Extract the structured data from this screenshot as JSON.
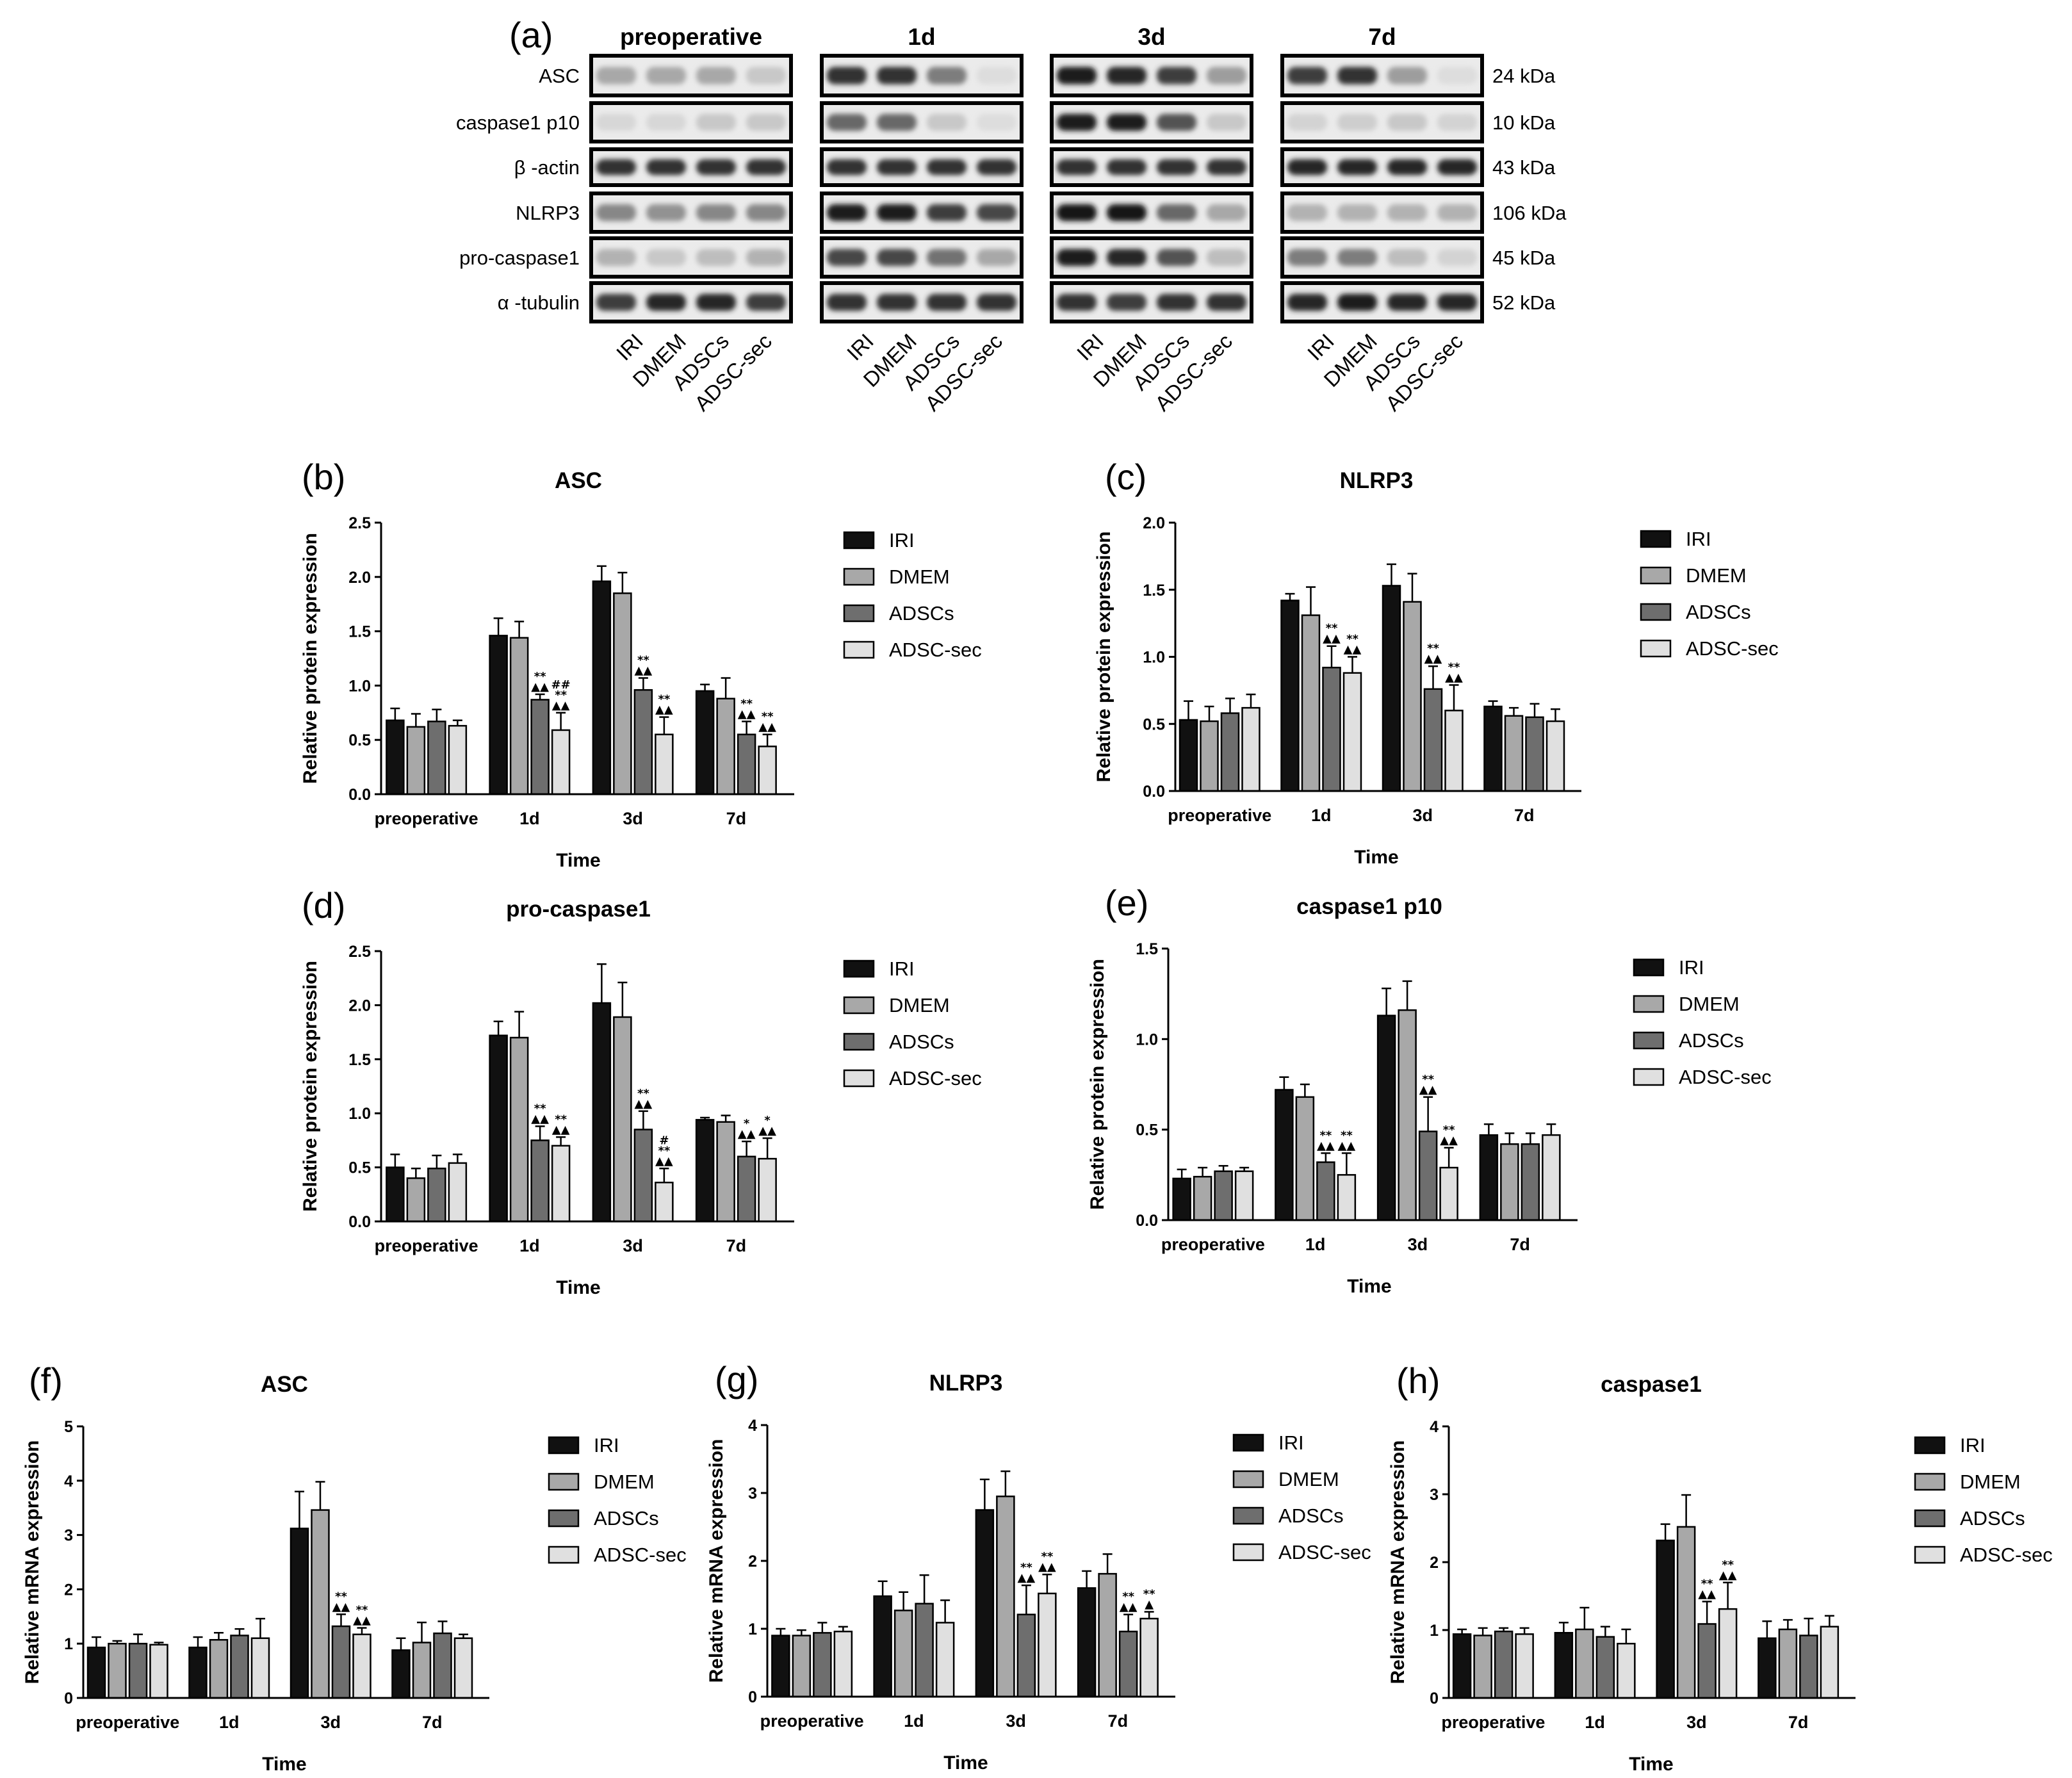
{
  "blot": {
    "panel": "(a)",
    "groups": [
      "preoperative",
      "1d",
      "3d",
      "7d"
    ],
    "lanes": [
      "IRI",
      "DMEM",
      "ADSCs",
      "ADSC-sec"
    ],
    "rows": [
      {
        "label": "ASC",
        "mw": "24 kDa",
        "band_intensity": [
          [
            0.3,
            0.3,
            0.3,
            0.15
          ],
          [
            0.85,
            0.85,
            0.5,
            0.05
          ],
          [
            0.95,
            0.9,
            0.8,
            0.35
          ],
          [
            0.8,
            0.85,
            0.35,
            0.05
          ]
        ]
      },
      {
        "label": "caspase1 p10",
        "mw": "10 kDa",
        "band_intensity": [
          [
            0.08,
            0.08,
            0.15,
            0.15
          ],
          [
            0.6,
            0.6,
            0.15,
            0.05
          ],
          [
            0.95,
            0.95,
            0.7,
            0.15
          ],
          [
            0.1,
            0.12,
            0.15,
            0.1
          ]
        ]
      },
      {
        "label": "β -actin",
        "mw": "43 kDa",
        "band_intensity": [
          [
            0.85,
            0.85,
            0.85,
            0.85
          ],
          [
            0.85,
            0.85,
            0.85,
            0.85
          ],
          [
            0.85,
            0.85,
            0.85,
            0.85
          ],
          [
            0.9,
            0.9,
            0.9,
            0.9
          ]
        ]
      },
      {
        "label": "NLRP3",
        "mw": "106 kDa",
        "band_intensity": [
          [
            0.45,
            0.4,
            0.45,
            0.45
          ],
          [
            0.95,
            0.95,
            0.8,
            0.75
          ],
          [
            0.98,
            0.98,
            0.6,
            0.3
          ],
          [
            0.25,
            0.25,
            0.25,
            0.25
          ]
        ]
      },
      {
        "label": "pro-caspase1",
        "mw": "45 kDa",
        "band_intensity": [
          [
            0.25,
            0.15,
            0.2,
            0.25
          ],
          [
            0.75,
            0.75,
            0.55,
            0.3
          ],
          [
            0.95,
            0.9,
            0.7,
            0.2
          ],
          [
            0.5,
            0.5,
            0.2,
            0.1
          ]
        ]
      },
      {
        "label": "α -tubulin",
        "mw": "52 kDa",
        "band_intensity": [
          [
            0.8,
            0.9,
            0.9,
            0.8
          ],
          [
            0.85,
            0.85,
            0.85,
            0.85
          ],
          [
            0.85,
            0.8,
            0.85,
            0.85
          ],
          [
            0.9,
            0.95,
            0.9,
            0.9
          ]
        ]
      }
    ]
  },
  "chart_data": [
    {
      "panel": "(b)",
      "type": "bar",
      "title": "ASC",
      "ylabel": "Relative protein expression",
      "xlabel": "Time",
      "categories": [
        "preoperative",
        "1d",
        "3d",
        "7d"
      ],
      "ylim": [
        0,
        2.5
      ],
      "yticks": [
        "0.0",
        "0.5",
        "1.0",
        "1.5",
        "2.0",
        "2.5"
      ],
      "series": [
        {
          "name": "IRI",
          "color": "#111111",
          "values": [
            0.68,
            1.46,
            1.96,
            0.95
          ],
          "errors": [
            0.11,
            0.16,
            0.14,
            0.06
          ],
          "annotations": [
            [],
            [],
            [],
            []
          ]
        },
        {
          "name": "DMEM",
          "color": "#a8a8a8",
          "values": [
            0.62,
            1.44,
            1.85,
            0.88
          ],
          "errors": [
            0.12,
            0.15,
            0.19,
            0.19
          ],
          "annotations": [
            [],
            [],
            [],
            []
          ]
        },
        {
          "name": "ADSCs",
          "color": "#6e6e6e",
          "values": [
            0.67,
            0.87,
            0.96,
            0.55
          ],
          "errors": [
            0.11,
            0.05,
            0.11,
            0.12
          ],
          "annotations": [
            [],
            [
              "**",
              "▲▲"
            ],
            [
              "**",
              "▲▲"
            ],
            [
              "**",
              "▲▲"
            ]
          ]
        },
        {
          "name": "ADSC-sec",
          "color": "#e0e0e0",
          "values": [
            0.63,
            0.59,
            0.55,
            0.44
          ],
          "errors": [
            0.05,
            0.16,
            0.16,
            0.11
          ],
          "annotations": [
            [],
            [
              "##",
              "**",
              "▲▲"
            ],
            [
              "**",
              "▲▲"
            ],
            [
              "**",
              "▲▲"
            ]
          ]
        }
      ]
    },
    {
      "panel": "(c)",
      "type": "bar",
      "title": "NLRP3",
      "ylabel": "Relative protein expression",
      "xlabel": "Time",
      "categories": [
        "preoperative",
        "1d",
        "3d",
        "7d"
      ],
      "ylim": [
        0,
        2.0
      ],
      "yticks": [
        "0.0",
        "0.5",
        "1.0",
        "1.5",
        "2.0"
      ],
      "series": [
        {
          "name": "IRI",
          "color": "#111111",
          "values": [
            0.53,
            1.42,
            1.53,
            0.63
          ],
          "errors": [
            0.14,
            0.05,
            0.16,
            0.04
          ],
          "annotations": [
            [],
            [],
            [],
            []
          ]
        },
        {
          "name": "DMEM",
          "color": "#a8a8a8",
          "values": [
            0.52,
            1.31,
            1.41,
            0.56
          ],
          "errors": [
            0.11,
            0.21,
            0.21,
            0.06
          ],
          "annotations": [
            [],
            [],
            [],
            []
          ]
        },
        {
          "name": "ADSCs",
          "color": "#6e6e6e",
          "values": [
            0.58,
            0.92,
            0.76,
            0.55
          ],
          "errors": [
            0.11,
            0.16,
            0.17,
            0.1
          ],
          "annotations": [
            [],
            [
              "**",
              "▲▲"
            ],
            [
              "**",
              "▲▲"
            ],
            []
          ]
        },
        {
          "name": "ADSC-sec",
          "color": "#e0e0e0",
          "values": [
            0.62,
            0.88,
            0.6,
            0.52
          ],
          "errors": [
            0.1,
            0.12,
            0.19,
            0.09
          ],
          "annotations": [
            [],
            [
              "**",
              "▲▲"
            ],
            [
              "**",
              "▲▲"
            ],
            []
          ]
        }
      ]
    },
    {
      "panel": "(d)",
      "type": "bar",
      "title": "pro-caspase1",
      "ylabel": "Relative protein expression",
      "xlabel": "Time",
      "categories": [
        "preoperative",
        "1d",
        "3d",
        "7d"
      ],
      "ylim": [
        0,
        2.5
      ],
      "yticks": [
        "0.0",
        "0.5",
        "1.0",
        "1.5",
        "2.0",
        "2.5"
      ],
      "series": [
        {
          "name": "IRI",
          "color": "#111111",
          "values": [
            0.5,
            1.72,
            2.02,
            0.94
          ],
          "errors": [
            0.12,
            0.13,
            0.36,
            0.02
          ],
          "annotations": [
            [],
            [],
            [],
            []
          ]
        },
        {
          "name": "DMEM",
          "color": "#a8a8a8",
          "values": [
            0.4,
            1.7,
            1.89,
            0.92
          ],
          "errors": [
            0.09,
            0.24,
            0.32,
            0.06
          ],
          "annotations": [
            [],
            [],
            [],
            []
          ]
        },
        {
          "name": "ADSCs",
          "color": "#6e6e6e",
          "values": [
            0.49,
            0.75,
            0.85,
            0.6
          ],
          "errors": [
            0.12,
            0.13,
            0.17,
            0.14
          ],
          "annotations": [
            [],
            [
              "**",
              "▲▲"
            ],
            [
              "**",
              "▲▲"
            ],
            [
              "*",
              "▲▲"
            ]
          ]
        },
        {
          "name": "ADSC-sec",
          "color": "#e0e0e0",
          "values": [
            0.54,
            0.7,
            0.36,
            0.58
          ],
          "errors": [
            0.08,
            0.08,
            0.13,
            0.19
          ],
          "annotations": [
            [],
            [
              "**",
              "▲▲"
            ],
            [
              "#",
              "**",
              "▲▲"
            ],
            [
              "*",
              "▲▲"
            ]
          ]
        }
      ]
    },
    {
      "panel": "(e)",
      "type": "bar",
      "title": "caspase1 p10",
      "ylabel": "Relative protein expression",
      "xlabel": "Time",
      "categories": [
        "preoperative",
        "1d",
        "3d",
        "7d"
      ],
      "ylim": [
        0,
        1.5
      ],
      "yticks": [
        "0.0",
        "0.5",
        "1.0",
        "1.5"
      ],
      "series": [
        {
          "name": "IRI",
          "color": "#111111",
          "values": [
            0.23,
            0.72,
            1.13,
            0.47
          ],
          "errors": [
            0.05,
            0.07,
            0.15,
            0.06
          ],
          "annotations": [
            [],
            [],
            [],
            []
          ]
        },
        {
          "name": "DMEM",
          "color": "#a8a8a8",
          "values": [
            0.24,
            0.68,
            1.16,
            0.42
          ],
          "errors": [
            0.05,
            0.07,
            0.16,
            0.06
          ],
          "annotations": [
            [],
            [],
            [],
            []
          ]
        },
        {
          "name": "ADSCs",
          "color": "#6e6e6e",
          "values": [
            0.27,
            0.32,
            0.49,
            0.42
          ],
          "errors": [
            0.03,
            0.05,
            0.19,
            0.06
          ],
          "annotations": [
            [],
            [
              "**",
              "▲▲"
            ],
            [
              "**",
              "▲▲"
            ],
            []
          ]
        },
        {
          "name": "ADSC-sec",
          "color": "#e0e0e0",
          "values": [
            0.27,
            0.25,
            0.29,
            0.47
          ],
          "errors": [
            0.02,
            0.12,
            0.11,
            0.06
          ],
          "annotations": [
            [],
            [
              "**",
              "▲▲"
            ],
            [
              "**",
              "▲▲"
            ],
            []
          ]
        }
      ]
    },
    {
      "panel": "(f)",
      "type": "bar",
      "title": "ASC",
      "ylabel": "Relative mRNA expression",
      "xlabel": "Time",
      "categories": [
        "preoperative",
        "1d",
        "3d",
        "7d"
      ],
      "ylim": [
        0,
        5
      ],
      "yticks": [
        "0",
        "1",
        "2",
        "3",
        "4",
        "5"
      ],
      "series": [
        {
          "name": "IRI",
          "color": "#111111",
          "values": [
            0.93,
            0.93,
            3.12,
            0.88
          ],
          "errors": [
            0.19,
            0.19,
            0.68,
            0.22
          ],
          "annotations": [
            [],
            [],
            [],
            []
          ]
        },
        {
          "name": "DMEM",
          "color": "#a8a8a8",
          "values": [
            1.0,
            1.07,
            3.46,
            1.02
          ],
          "errors": [
            0.05,
            0.13,
            0.52,
            0.37
          ],
          "annotations": [
            [],
            [],
            [],
            []
          ]
        },
        {
          "name": "ADSCs",
          "color": "#6e6e6e",
          "values": [
            1.0,
            1.15,
            1.32,
            1.19
          ],
          "errors": [
            0.17,
            0.12,
            0.22,
            0.22
          ],
          "annotations": [
            [],
            [],
            [
              "**",
              "▲▲"
            ],
            []
          ]
        },
        {
          "name": "ADSC-sec",
          "color": "#e0e0e0",
          "values": [
            0.98,
            1.1,
            1.17,
            1.1
          ],
          "errors": [
            0.04,
            0.36,
            0.12,
            0.07
          ],
          "annotations": [
            [],
            [],
            [
              "**",
              "▲▲"
            ],
            []
          ]
        }
      ]
    },
    {
      "panel": "(g)",
      "type": "bar",
      "title": "NLRP3",
      "ylabel": "Relative mRNA expression",
      "xlabel": "Time",
      "categories": [
        "preoperative",
        "1d",
        "3d",
        "7d"
      ],
      "ylim": [
        0,
        4
      ],
      "yticks": [
        "0",
        "1",
        "2",
        "3",
        "4"
      ],
      "series": [
        {
          "name": "IRI",
          "color": "#111111",
          "values": [
            0.9,
            1.48,
            2.75,
            1.6
          ],
          "errors": [
            0.1,
            0.22,
            0.45,
            0.25
          ],
          "annotations": [
            [],
            [],
            [],
            []
          ]
        },
        {
          "name": "DMEM",
          "color": "#a8a8a8",
          "values": [
            0.9,
            1.27,
            2.95,
            1.81
          ],
          "errors": [
            0.08,
            0.27,
            0.37,
            0.29
          ],
          "annotations": [
            [],
            [],
            [],
            []
          ]
        },
        {
          "name": "ADSCs",
          "color": "#6e6e6e",
          "values": [
            0.94,
            1.37,
            1.21,
            0.96
          ],
          "errors": [
            0.15,
            0.42,
            0.43,
            0.25
          ],
          "annotations": [
            [],
            [],
            [
              "**",
              "▲▲"
            ],
            [
              "**",
              "▲▲"
            ]
          ]
        },
        {
          "name": "ADSC-sec",
          "color": "#e0e0e0",
          "values": [
            0.96,
            1.09,
            1.52,
            1.15
          ],
          "errors": [
            0.07,
            0.33,
            0.28,
            0.1
          ],
          "annotations": [
            [],
            [],
            [
              "**",
              "▲▲"
            ],
            [
              "**",
              "▲"
            ]
          ]
        }
      ]
    },
    {
      "panel": "(h)",
      "type": "bar",
      "title": "caspase1",
      "ylabel": "Relative mRNA expression",
      "xlabel": "Time",
      "categories": [
        "preoperative",
        "1d",
        "3d",
        "7d"
      ],
      "ylim": [
        0,
        4
      ],
      "yticks": [
        "0",
        "1",
        "2",
        "3",
        "4"
      ],
      "series": [
        {
          "name": "IRI",
          "color": "#111111",
          "values": [
            0.94,
            0.96,
            2.32,
            0.88
          ],
          "errors": [
            0.07,
            0.15,
            0.24,
            0.25
          ],
          "annotations": [
            [],
            [],
            [],
            []
          ]
        },
        {
          "name": "DMEM",
          "color": "#a8a8a8",
          "values": [
            0.92,
            1.01,
            2.52,
            1.01
          ],
          "errors": [
            0.11,
            0.32,
            0.47,
            0.14
          ],
          "annotations": [
            [],
            [],
            [],
            []
          ]
        },
        {
          "name": "ADSCs",
          "color": "#6e6e6e",
          "values": [
            0.98,
            0.9,
            1.09,
            0.92
          ],
          "errors": [
            0.05,
            0.15,
            0.33,
            0.25
          ],
          "annotations": [
            [],
            [],
            [
              "**",
              "▲▲"
            ],
            []
          ]
        },
        {
          "name": "ADSC-sec",
          "color": "#e0e0e0",
          "values": [
            0.94,
            0.8,
            1.31,
            1.05
          ],
          "errors": [
            0.09,
            0.21,
            0.39,
            0.16
          ],
          "annotations": [
            [],
            [],
            [
              "**",
              "▲▲"
            ],
            []
          ]
        }
      ]
    }
  ]
}
